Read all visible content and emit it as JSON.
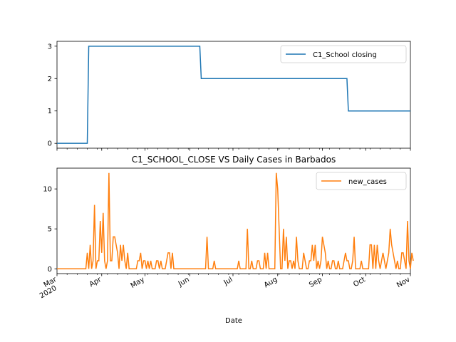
{
  "chart_data": [
    {
      "type": "line",
      "series": [
        {
          "name": "C1_School closing",
          "color": "#1f77b4",
          "points": [
            [
              "2020-03-01",
              0
            ],
            [
              "2020-03-22",
              0
            ],
            [
              "2020-03-23",
              3
            ],
            [
              "2020-06-08",
              3
            ],
            [
              "2020-06-09",
              2
            ],
            [
              "2020-09-18",
              2
            ],
            [
              "2020-09-19",
              1
            ],
            [
              "2020-11-01",
              1
            ]
          ]
        }
      ],
      "x_range": [
        "2020-03-01",
        "2020-11-01"
      ],
      "ylim": [
        -0.15,
        3.15
      ],
      "y_ticks": [
        0,
        1,
        2,
        3
      ],
      "legend_position": "upper right"
    },
    {
      "type": "line",
      "title": "C1_SCHOOL_CLOSE VS Daily Cases in Barbados",
      "xlabel": "Date",
      "series": [
        {
          "name": "new_cases",
          "color": "#ff7f0e",
          "start": "2020-03-01",
          "values": [
            0,
            0,
            0,
            0,
            0,
            0,
            0,
            0,
            0,
            0,
            0,
            0,
            0,
            0,
            0,
            0,
            0,
            0,
            0,
            0,
            0,
            2,
            0,
            3,
            0,
            1,
            8,
            0,
            1,
            1,
            6,
            2,
            7,
            1,
            0,
            1,
            12,
            1,
            1,
            4,
            4,
            3,
            2,
            0,
            3,
            1,
            3,
            1,
            0,
            2,
            0,
            0,
            0,
            0,
            0,
            0,
            1,
            1,
            2,
            0,
            1,
            1,
            0,
            1,
            0,
            1,
            0,
            0,
            0,
            1,
            1,
            0,
            1,
            0,
            0,
            0,
            1,
            2,
            2,
            0,
            2,
            0,
            0,
            0,
            0,
            0,
            0,
            0,
            0,
            0,
            0,
            0,
            0,
            0,
            0,
            0,
            0,
            0,
            0,
            0,
            0,
            0,
            0,
            0,
            4,
            0,
            0,
            0,
            0,
            1,
            0,
            0,
            0,
            0,
            0,
            0,
            0,
            0,
            0,
            0,
            0,
            0,
            0,
            0,
            0,
            0,
            1,
            0,
            0,
            0,
            0,
            0,
            5,
            0,
            0,
            1,
            0,
            0,
            0,
            1,
            1,
            0,
            0,
            0,
            2,
            0,
            2,
            0,
            0,
            0,
            0,
            0,
            12,
            10,
            5,
            0,
            0,
            5,
            1,
            4,
            0,
            1,
            1,
            0,
            1,
            0,
            4,
            1,
            0,
            0,
            0,
            2,
            1,
            0,
            0,
            1,
            1,
            3,
            1,
            3,
            0,
            1,
            0,
            1,
            4,
            3,
            2,
            0,
            1,
            0,
            0,
            1,
            1,
            0,
            0,
            1,
            0,
            0,
            0,
            1,
            2,
            1,
            1,
            0,
            0,
            1,
            4,
            0,
            0,
            0,
            0,
            1,
            0,
            0,
            0,
            0,
            0,
            3,
            3,
            0,
            3,
            0,
            3,
            1,
            0,
            1,
            2,
            1,
            0,
            1,
            2,
            5,
            3,
            2,
            1,
            0,
            1,
            0,
            0,
            2,
            2,
            1,
            0,
            6,
            1,
            0,
            2,
            1
          ]
        }
      ],
      "x_ticks": [
        {
          "date": "2020-03-01",
          "label": "Mar",
          "year": "2020"
        },
        {
          "date": "2020-04-01",
          "label": "Apr"
        },
        {
          "date": "2020-05-01",
          "label": "May"
        },
        {
          "date": "2020-06-01",
          "label": "Jun"
        },
        {
          "date": "2020-07-01",
          "label": "Jul"
        },
        {
          "date": "2020-08-01",
          "label": "Aug"
        },
        {
          "date": "2020-09-01",
          "label": "Sep"
        },
        {
          "date": "2020-10-01",
          "label": "Oct"
        },
        {
          "date": "2020-11-01",
          "label": "Nov"
        }
      ],
      "x_range": [
        "2020-03-01",
        "2020-11-01"
      ],
      "ylim": [
        -0.6,
        12.6
      ],
      "y_ticks": [
        0,
        5,
        10
      ],
      "legend_position": "upper right"
    }
  ]
}
